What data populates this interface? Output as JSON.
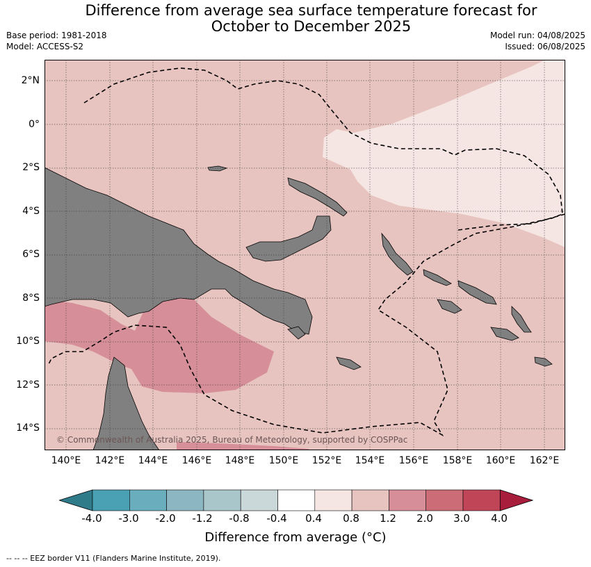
{
  "title_line1": "Difference from average sea surface temperature forecast for",
  "title_line2": "October to December 2025",
  "base_period": "Base period: 1981-2018",
  "model": "Model: ACCESS-S2",
  "model_run": "Model run: 04/08/2025",
  "issued": "Issued: 06/08/2025",
  "copyright": "© Commonwealth of Australia 2025, Bureau of Meteorology, supported by COSPPac",
  "lat_ticks": [
    "2°N",
    "0°",
    "2°S",
    "4°S",
    "6°S",
    "8°S",
    "10°S",
    "12°S",
    "14°S"
  ],
  "lon_ticks": [
    "140°E",
    "142°E",
    "144°E",
    "146°E",
    "148°E",
    "150°E",
    "152°E",
    "154°E",
    "156°E",
    "158°E",
    "160°E",
    "162°E"
  ],
  "colorbar": {
    "labels": [
      "-4.0",
      "-3.0",
      "-2.0",
      "-1.2",
      "-0.8",
      "-0.4",
      "0.4",
      "0.8",
      "1.2",
      "2.0",
      "3.0",
      "4.0"
    ],
    "colors": [
      "#2f7b8a",
      "#4aa1b3",
      "#6aaebd",
      "#8cb6c1",
      "#a9c6cb",
      "#cbd8da",
      "#ffffff",
      "#f5e6e4",
      "#e8c4c0",
      "#d68f98",
      "#cc6c77",
      "#c04657",
      "#a81c3c"
    ],
    "title": "Difference from average (°C)"
  },
  "footnote": "--  --  -- EEZ border V11 (Flanders Marine Institute, 2019).",
  "legend_classes": {
    "background": "0.8 to 1.2",
    "east_pale": "0.4 to 0.8",
    "gulf_warm": "1.2 to 2.0"
  }
}
